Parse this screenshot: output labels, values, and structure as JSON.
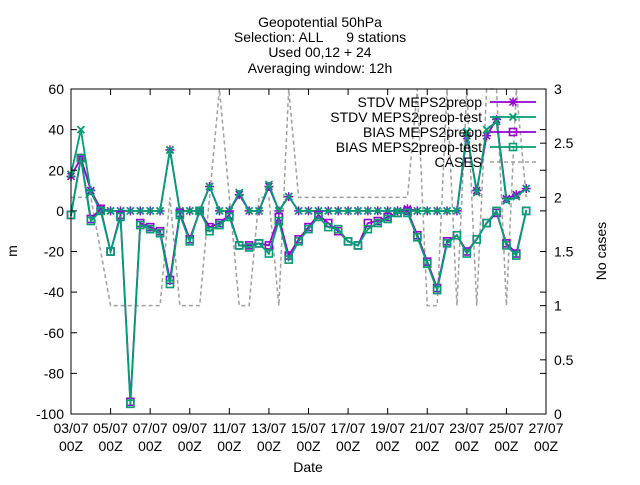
{
  "chart_data": {
    "type": "line",
    "title_lines": [
      "Geopotential 50hPa",
      "Selection: ALL      9 stations",
      "Used 00,12 + 24",
      "Averaging window: 12h"
    ],
    "xlabel": "Date",
    "ylabel": "m",
    "y2label": "No cases",
    "ylim": [
      -100,
      60
    ],
    "y_ticks": [
      -100,
      -80,
      -60,
      -40,
      -20,
      0,
      20,
      40,
      60
    ],
    "y2lim": [
      0,
      3
    ],
    "y2_ticks": [
      "0",
      "0.5",
      "1",
      "1.5",
      "2",
      "2.5",
      "3"
    ],
    "x_range": [
      0,
      48
    ],
    "x_tick_positions": [
      0,
      4,
      8,
      12,
      16,
      20,
      24,
      28,
      32,
      36,
      40,
      44,
      48
    ],
    "x_ticks": [
      {
        "date": "03/07",
        "hour": "00Z"
      },
      {
        "date": "05/07",
        "hour": "00Z"
      },
      {
        "date": "07/07",
        "hour": "00Z"
      },
      {
        "date": "09/07",
        "hour": "00Z"
      },
      {
        "date": "11/07",
        "hour": "00Z"
      },
      {
        "date": "13/07",
        "hour": "00Z"
      },
      {
        "date": "15/07",
        "hour": "00Z"
      },
      {
        "date": "17/07",
        "hour": "00Z"
      },
      {
        "date": "19/07",
        "hour": "00Z"
      },
      {
        "date": "21/07",
        "hour": "00Z"
      },
      {
        "date": "23/07",
        "hour": "00Z"
      },
      {
        "date": "25/07",
        "hour": "00Z"
      },
      {
        "date": "27/07",
        "hour": "00Z"
      }
    ],
    "grid": false,
    "legend_position": "top-right",
    "series": [
      {
        "name": "STDV MEPS2preop",
        "color": "#9400d3",
        "marker": "star",
        "dashed": false,
        "x": [
          0,
          1,
          2,
          3,
          4,
          5,
          6,
          7,
          8,
          9,
          10,
          11,
          12,
          13,
          14,
          15,
          16,
          17,
          18,
          19,
          20,
          21,
          22,
          23,
          24,
          25,
          26,
          27,
          28,
          29,
          30,
          31,
          32,
          33,
          34,
          35,
          36,
          37,
          38,
          39,
          40,
          41,
          42,
          43,
          44,
          45,
          46
        ],
        "y": [
          17,
          26,
          10,
          1,
          0,
          0,
          0,
          0,
          0,
          0,
          30,
          0,
          0,
          0,
          12,
          0,
          0,
          8,
          0,
          0,
          12,
          0,
          7,
          0,
          0,
          0,
          0,
          0,
          0,
          0,
          0,
          0,
          0,
          0,
          1,
          0,
          0,
          0,
          0,
          0,
          37,
          10,
          37,
          45,
          6,
          8,
          11
        ]
      },
      {
        "name": "STDV MEPS2preop-test",
        "color": "#009e73",
        "marker": "x",
        "dashed": false,
        "x": [
          0,
          1,
          2,
          3,
          4,
          5,
          6,
          7,
          8,
          9,
          10,
          11,
          12,
          13,
          14,
          15,
          16,
          17,
          18,
          19,
          20,
          21,
          22,
          23,
          24,
          25,
          26,
          27,
          28,
          29,
          30,
          31,
          32,
          33,
          34,
          35,
          36,
          37,
          38,
          39,
          40,
          41,
          42,
          43,
          44,
          45,
          46
        ],
        "y": [
          18,
          40,
          9,
          0,
          0,
          0,
          0,
          0,
          0,
          0,
          30,
          0,
          0,
          0,
          12,
          0,
          0,
          9,
          0,
          0,
          13,
          0,
          7,
          0,
          0,
          0,
          0,
          0,
          0,
          0,
          0,
          0,
          0,
          0,
          0,
          0,
          0,
          0,
          0,
          0,
          39,
          9,
          40,
          44,
          5,
          7,
          11
        ]
      },
      {
        "name": "BIAS MEPS2preop",
        "color": "#9400d3",
        "marker": "square",
        "dashed": false,
        "x": [
          0,
          1,
          2,
          3,
          4,
          5,
          6,
          7,
          8,
          9,
          10,
          11,
          12,
          13,
          14,
          15,
          16,
          17,
          18,
          19,
          20,
          21,
          22,
          23,
          24,
          25,
          26,
          27,
          28,
          29,
          30,
          31,
          32,
          33,
          34,
          35,
          36,
          37,
          38,
          39,
          40,
          41,
          42,
          43,
          44,
          45,
          46
        ],
        "y": [
          -2,
          26,
          -4,
          1,
          -20,
          -2,
          -94,
          -6,
          -8,
          -10,
          -34,
          -1,
          -14,
          0,
          -8,
          -6,
          -2,
          -17,
          -17,
          -16,
          -17,
          -3,
          -22,
          -14,
          -8,
          -2,
          -6,
          -10,
          -15,
          -17,
          -6,
          -5,
          -3,
          -1,
          0,
          -12,
          -25,
          -38,
          -15,
          -12,
          -20,
          -14,
          -6,
          -1,
          -16,
          -21,
          0
        ]
      },
      {
        "name": "BIAS MEPS2preop-test",
        "color": "#009e73",
        "marker": "square-dot",
        "dashed": false,
        "x": [
          0,
          1,
          2,
          3,
          4,
          5,
          6,
          7,
          8,
          9,
          10,
          11,
          12,
          13,
          14,
          15,
          16,
          17,
          18,
          19,
          20,
          21,
          22,
          23,
          24,
          25,
          26,
          27,
          28,
          29,
          30,
          31,
          32,
          33,
          34,
          35,
          36,
          37,
          38,
          39,
          40,
          41,
          42,
          43,
          44,
          45,
          46
        ],
        "y": [
          -2,
          26,
          -5,
          0,
          -20,
          -3,
          -95,
          -7,
          -9,
          -11,
          -36,
          -2,
          -15,
          0,
          -10,
          -7,
          -3,
          -17,
          -18,
          -16,
          -21,
          -5,
          -24,
          -15,
          -9,
          -3,
          -8,
          -9,
          -15,
          -17,
          -9,
          -6,
          -4,
          -1,
          -1,
          -13,
          -26,
          -39,
          -16,
          -12,
          -21,
          -14,
          -6,
          0,
          -17,
          -22,
          0
        ]
      },
      {
        "name": "CASES",
        "color": "#a0a0a0",
        "marker": "none",
        "dashed": true,
        "axis": "y2",
        "x": [
          0,
          1,
          2,
          3,
          4,
          5,
          6,
          7,
          8,
          9,
          10,
          11,
          12,
          13,
          14,
          15,
          16,
          17,
          18,
          19,
          20,
          21,
          22,
          23,
          24,
          25,
          26,
          27,
          28,
          29,
          30,
          31,
          32,
          33,
          34,
          35,
          36,
          37,
          38,
          39,
          40,
          41,
          42,
          43,
          44,
          45,
          46
        ],
        "y": [
          2,
          2,
          2,
          1.5,
          1,
          1,
          1,
          1,
          1,
          1,
          2,
          1,
          1,
          1,
          2,
          3,
          2,
          1,
          1,
          2,
          2,
          1,
          3,
          2,
          2,
          2,
          2,
          2,
          2,
          2,
          2,
          2,
          2,
          2,
          2,
          3,
          1,
          1,
          3,
          1,
          3,
          1,
          3,
          3,
          1,
          3,
          2
        ]
      }
    ]
  }
}
